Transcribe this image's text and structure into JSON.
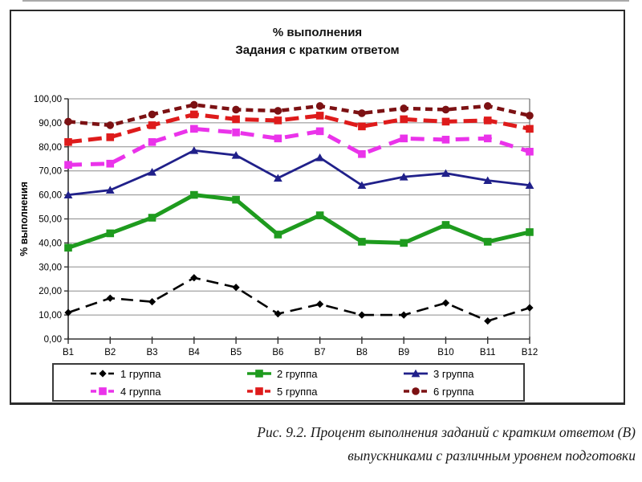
{
  "chart": {
    "title_line1": "% выполнения",
    "title_line2": "Задания с кратким ответом"
  },
  "chart_data": {
    "type": "line",
    "title": "% выполнения. Задания с кратким ответом",
    "xlabel": "",
    "ylabel": "% выполнения",
    "ylim": [
      0,
      100
    ],
    "y_tick_step": 10,
    "grid": true,
    "legend_position": "bottom",
    "y_tick_labels": [
      "100,00",
      "90,00",
      "80,00",
      "70,00",
      "60,00",
      "50,00",
      "40,00",
      "30,00",
      "20,00",
      "10,00",
      "0,00"
    ],
    "categories": [
      "В1",
      "В2",
      "В3",
      "В4",
      "В5",
      "В6",
      "В7",
      "В8",
      "В9",
      "В10",
      "В11",
      "В12"
    ],
    "series": [
      {
        "name": "1 группа",
        "color": "#000000",
        "style": "dashed",
        "marker": "diamond",
        "values": [
          11,
          17,
          15.5,
          25.5,
          21.5,
          10.5,
          14.5,
          10,
          10,
          15,
          7.5,
          13
        ]
      },
      {
        "name": "2 группа",
        "color": "#1e9b1e",
        "style": "solid",
        "marker": "square",
        "values": [
          38,
          44,
          50.5,
          60,
          58,
          43.5,
          51.5,
          40.5,
          40,
          47.5,
          40.5,
          44.5
        ]
      },
      {
        "name": "3 группа",
        "color": "#20208a",
        "style": "solid",
        "marker": "triangle",
        "values": [
          60,
          62,
          69.5,
          78.5,
          76.5,
          67,
          75.5,
          64,
          67.5,
          69,
          66,
          64
        ]
      },
      {
        "name": "4 группа",
        "color": "#ea33ea",
        "style": "dashed",
        "marker": "square",
        "values": [
          72.5,
          73,
          82,
          87.5,
          86,
          83.5,
          86.5,
          77,
          83.5,
          83,
          83.5,
          78
        ]
      },
      {
        "name": "5 группа",
        "color": "#de1b1b",
        "style": "dashed",
        "marker": "square",
        "values": [
          82,
          84,
          89,
          93.5,
          91.5,
          91,
          93,
          88.5,
          91.5,
          90.5,
          91,
          87.5
        ]
      },
      {
        "name": "6 группа",
        "color": "#7c1113",
        "style": "dashed",
        "marker": "circle",
        "values": [
          90.5,
          89,
          93.5,
          97.5,
          95.5,
          95,
          97,
          94,
          96,
          95.5,
          97,
          93
        ]
      }
    ]
  },
  "caption": {
    "line1": "Рис. 9.2. Процент выполнения заданий с кратким ответом (В)",
    "line2": "выпускниками с различным уровнем подготовки"
  }
}
